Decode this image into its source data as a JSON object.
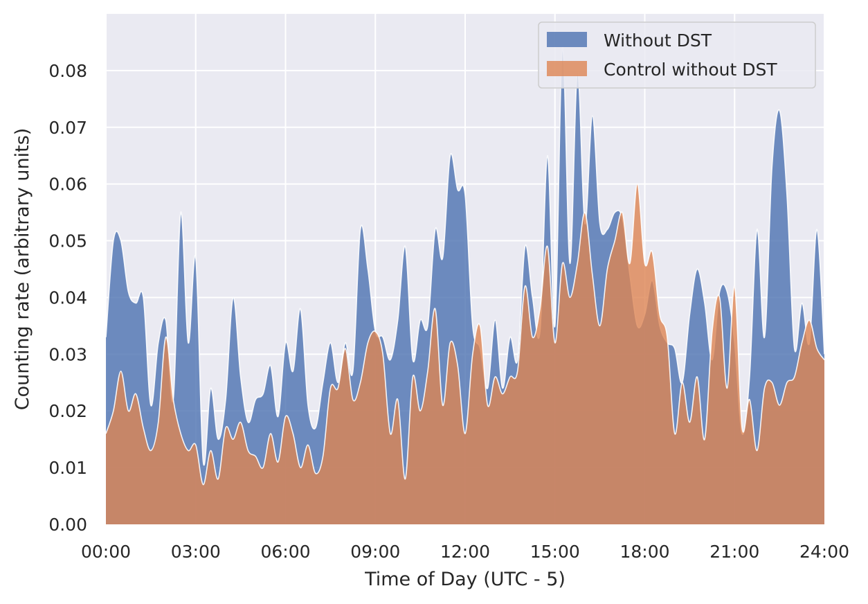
{
  "chart_data": {
    "type": "area",
    "title": "",
    "xlabel": "Time of Day (UTC - 5)",
    "ylabel": "Counting rate (arbitrary units)",
    "x_unit": "hours",
    "xlim": [
      0,
      24
    ],
    "ylim": [
      0,
      0.09
    ],
    "x_ticks": [
      0,
      3,
      6,
      9,
      12,
      15,
      18,
      21,
      24
    ],
    "x_tick_labels": [
      "00:00",
      "03:00",
      "06:00",
      "09:00",
      "12:00",
      "15:00",
      "18:00",
      "21:00",
      "24:00"
    ],
    "y_ticks": [
      0,
      0.01,
      0.02,
      0.03,
      0.04,
      0.05,
      0.06,
      0.07,
      0.08
    ],
    "y_tick_labels": [
      "0.00",
      "0.01",
      "0.02",
      "0.03",
      "0.04",
      "0.05",
      "0.06",
      "0.07",
      "0.08"
    ],
    "grid": true,
    "legend_position": "top-right",
    "colors": {
      "background": "#eaeaf2",
      "grid": "#ffffff",
      "without_dst": "#4c72b0",
      "control": "#dd8452"
    },
    "series": [
      {
        "name": "Without DST",
        "x": [
          0,
          0.25,
          0.5,
          0.75,
          1.0,
          1.25,
          1.5,
          1.75,
          2.0,
          2.25,
          2.5,
          2.75,
          3.0,
          3.25,
          3.5,
          3.75,
          4.0,
          4.25,
          4.5,
          4.75,
          5.0,
          5.25,
          5.5,
          5.75,
          6.0,
          6.25,
          6.5,
          6.75,
          7.0,
          7.25,
          7.5,
          7.75,
          8.0,
          8.25,
          8.5,
          8.75,
          9.0,
          9.25,
          9.5,
          9.75,
          10.0,
          10.25,
          10.5,
          10.75,
          11.0,
          11.25,
          11.5,
          11.75,
          12.0,
          12.25,
          12.5,
          12.75,
          13.0,
          13.25,
          13.5,
          13.75,
          14.0,
          14.25,
          14.5,
          14.75,
          15.0,
          15.25,
          15.5,
          15.75,
          16.0,
          16.25,
          16.5,
          16.75,
          17.0,
          17.25,
          17.5,
          17.75,
          18.0,
          18.25,
          18.5,
          18.75,
          19.0,
          19.25,
          19.5,
          19.75,
          20.0,
          20.25,
          20.5,
          20.75,
          21.0,
          21.25,
          21.5,
          21.75,
          22.0,
          22.25,
          22.5,
          22.75,
          23.0,
          23.25,
          23.5,
          23.75,
          24.0
        ],
        "values": [
          0.033,
          0.05,
          0.05,
          0.041,
          0.039,
          0.04,
          0.021,
          0.032,
          0.036,
          0.022,
          0.055,
          0.032,
          0.047,
          0.011,
          0.024,
          0.015,
          0.022,
          0.04,
          0.026,
          0.018,
          0.022,
          0.023,
          0.028,
          0.019,
          0.032,
          0.027,
          0.038,
          0.021,
          0.017,
          0.025,
          0.032,
          0.025,
          0.032,
          0.027,
          0.052,
          0.045,
          0.034,
          0.033,
          0.029,
          0.036,
          0.049,
          0.029,
          0.036,
          0.035,
          0.052,
          0.047,
          0.065,
          0.059,
          0.058,
          0.035,
          0.031,
          0.024,
          0.036,
          0.024,
          0.033,
          0.029,
          0.049,
          0.04,
          0.034,
          0.065,
          0.035,
          0.084,
          0.046,
          0.08,
          0.053,
          0.072,
          0.053,
          0.052,
          0.055,
          0.054,
          0.044,
          0.035,
          0.037,
          0.043,
          0.035,
          0.032,
          0.031,
          0.025,
          0.037,
          0.045,
          0.039,
          0.029,
          0.041,
          0.041,
          0.032,
          0.016,
          0.026,
          0.052,
          0.033,
          0.063,
          0.073,
          0.058,
          0.031,
          0.039,
          0.032,
          0.052,
          0.03
        ]
      },
      {
        "name": "Control without DST",
        "x": [
          0,
          0.25,
          0.5,
          0.75,
          1.0,
          1.25,
          1.5,
          1.75,
          2.0,
          2.25,
          2.5,
          2.75,
          3.0,
          3.25,
          3.5,
          3.75,
          4.0,
          4.25,
          4.5,
          4.75,
          5.0,
          5.25,
          5.5,
          5.75,
          6.0,
          6.25,
          6.5,
          6.75,
          7.0,
          7.25,
          7.5,
          7.75,
          8.0,
          8.25,
          8.5,
          8.75,
          9.0,
          9.25,
          9.5,
          9.75,
          10.0,
          10.25,
          10.5,
          10.75,
          11.0,
          11.25,
          11.5,
          11.75,
          12.0,
          12.25,
          12.5,
          12.75,
          13.0,
          13.25,
          13.5,
          13.75,
          14.0,
          14.25,
          14.5,
          14.75,
          15.0,
          15.25,
          15.5,
          15.75,
          16.0,
          16.25,
          16.5,
          16.75,
          17.0,
          17.25,
          17.5,
          17.75,
          18.0,
          18.25,
          18.5,
          18.75,
          19.0,
          19.25,
          19.5,
          19.75,
          20.0,
          20.25,
          20.5,
          20.75,
          21.0,
          21.25,
          21.5,
          21.75,
          22.0,
          22.25,
          22.5,
          22.75,
          23.0,
          23.25,
          23.5,
          23.75,
          24.0
        ],
        "values": [
          0.016,
          0.02,
          0.027,
          0.02,
          0.023,
          0.017,
          0.013,
          0.018,
          0.033,
          0.022,
          0.016,
          0.013,
          0.014,
          0.007,
          0.013,
          0.008,
          0.017,
          0.015,
          0.018,
          0.013,
          0.012,
          0.01,
          0.016,
          0.011,
          0.019,
          0.016,
          0.01,
          0.014,
          0.009,
          0.012,
          0.024,
          0.024,
          0.031,
          0.022,
          0.025,
          0.032,
          0.034,
          0.03,
          0.016,
          0.022,
          0.008,
          0.026,
          0.02,
          0.027,
          0.038,
          0.021,
          0.032,
          0.028,
          0.016,
          0.03,
          0.035,
          0.021,
          0.026,
          0.023,
          0.026,
          0.027,
          0.042,
          0.033,
          0.038,
          0.049,
          0.032,
          0.046,
          0.04,
          0.046,
          0.055,
          0.044,
          0.035,
          0.045,
          0.05,
          0.055,
          0.046,
          0.06,
          0.046,
          0.048,
          0.037,
          0.033,
          0.016,
          0.025,
          0.018,
          0.026,
          0.015,
          0.034,
          0.04,
          0.024,
          0.042,
          0.017,
          0.022,
          0.013,
          0.024,
          0.025,
          0.021,
          0.025,
          0.026,
          0.032,
          0.036,
          0.031,
          0.029
        ]
      }
    ]
  }
}
